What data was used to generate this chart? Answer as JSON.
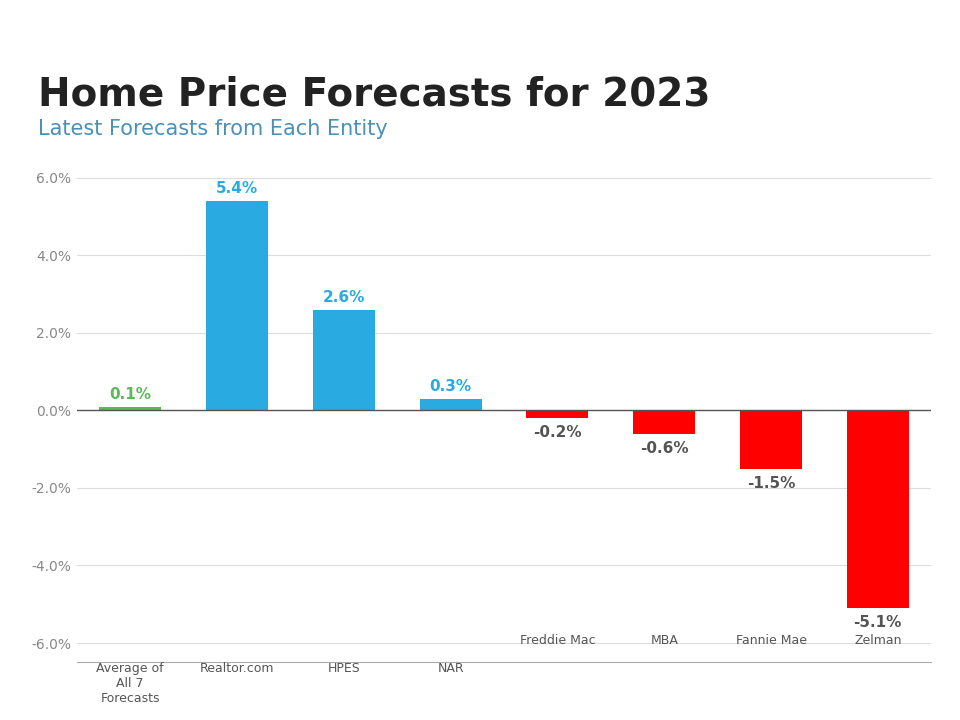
{
  "title": "Home Price Forecasts for 2023",
  "subtitle": "Latest Forecasts from Each Entity",
  "title_color": "#222222",
  "subtitle_color": "#4a90b8",
  "title_fontsize": 28,
  "subtitle_fontsize": 15,
  "top_bar_color": "#29abe2",
  "categories": [
    "Average of\nAll 7\nForecasts",
    "Realtor.com",
    "HPES",
    "NAR",
    "Freddie Mac",
    "MBA",
    "Fannie Mae",
    "Zelman"
  ],
  "categories_short": [
    "Freddie Mac",
    "MBA",
    "Fannie Mae",
    "Zelman"
  ],
  "values": [
    0.1,
    5.4,
    2.6,
    0.3,
    -0.2,
    -0.6,
    -1.5,
    -5.1
  ],
  "bar_colors": [
    "#5cb85c",
    "#29abe2",
    "#29abe2",
    "#29abe2",
    "#ff0000",
    "#ff0000",
    "#ff0000",
    "#ff0000"
  ],
  "value_labels": [
    "0.1%",
    "5.4%",
    "2.6%",
    "0.3%",
    "-0.2%",
    "-0.6%",
    "-1.5%",
    "-5.1%"
  ],
  "label_colors": [
    "#5cb85c",
    "#29abe2",
    "#29abe2",
    "#29abe2",
    "#595959",
    "#595959",
    "#595959",
    "#595959"
  ],
  "ylim": [
    -6.5,
    6.5
  ],
  "yticks": [
    -6.0,
    -4.0,
    -2.0,
    0.0,
    2.0,
    4.0,
    6.0
  ],
  "ytick_labels": [
    "-6.0%",
    "-4.0%",
    "-2.0%",
    "0.0%",
    "2.0%",
    "4.0%",
    "6.0%"
  ],
  "background_color": "#ffffff",
  "grid_color": "#dddddd",
  "axis_color": "#aaaaaa",
  "tick_color": "#888888"
}
